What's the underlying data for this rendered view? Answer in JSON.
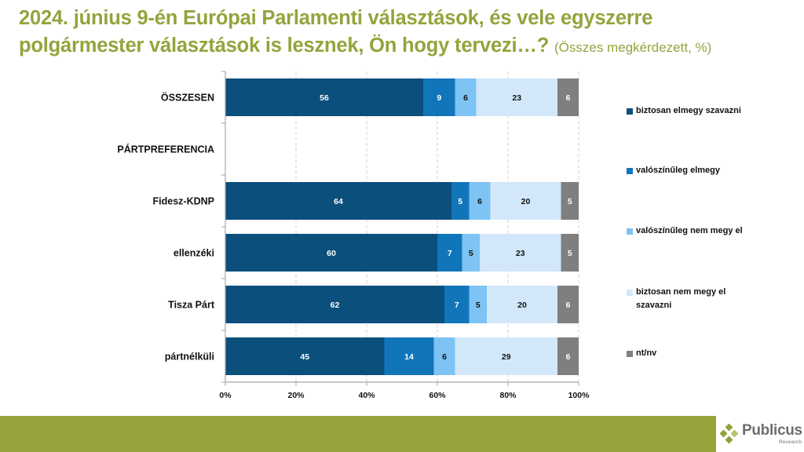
{
  "title": {
    "line1": "2024. június 9-én Európai Parlamenti választások, és vele egyszerre",
    "line2": "polgármester választások is lesznek, Ön hogy tervezi…?",
    "subtitle": "(Összes megkérdezett, %)"
  },
  "chart_data": {
    "type": "bar",
    "orientation": "horizontal",
    "stacked": true,
    "title": "2024. június 9-én Európai Parlamenti választások, és vele egyszerre polgármester választások is lesznek, Ön hogy tervezi…? (Összes megkérdezett, %)",
    "xlabel": "",
    "ylabel": "",
    "xlim": [
      0,
      100
    ],
    "x_ticks": [
      "0%",
      "20%",
      "40%",
      "60%",
      "80%",
      "100%"
    ],
    "x_tick_values": [
      0,
      20,
      40,
      60,
      80,
      100
    ],
    "grid": "vertical dashed",
    "legend_position": "right",
    "categories": [
      "ÖSSZESEN",
      "PÁRTPREFERENCIA",
      "Fidesz-KDNP",
      "ellenzéki",
      "Tisza Párt",
      "pártnélküli"
    ],
    "series": [
      {
        "name": "biztosan elmegy szavazni",
        "color": "#0b4f7c",
        "label_color": "#ffffff",
        "values": [
          56,
          null,
          64,
          60,
          62,
          45
        ]
      },
      {
        "name": "valószínűleg elmegy",
        "color": "#1175ba",
        "label_color": "#ffffff",
        "values": [
          9,
          null,
          5,
          7,
          7,
          14
        ]
      },
      {
        "name": "valószínűleg nem megy el",
        "color": "#7dc3f3",
        "label_color": "#111111",
        "values": [
          6,
          null,
          6,
          5,
          5,
          6
        ]
      },
      {
        "name": "biztosan nem megy el szavazni",
        "color": "#d2e8fa",
        "label_color": "#111111",
        "values": [
          23,
          null,
          20,
          23,
          20,
          29
        ]
      },
      {
        "name": "nt/nv",
        "color": "#7f7f7f",
        "label_color": "#ffffff",
        "values": [
          6,
          null,
          5,
          5,
          6,
          6
        ]
      }
    ]
  },
  "legend": {
    "items": [
      {
        "label": "biztosan elmegy szavazni",
        "color": "#0b4f7c"
      },
      {
        "label": "valószínűleg elmegy",
        "color": "#1175ba"
      },
      {
        "label": "valószínűleg nem megy el",
        "color": "#7dc3f3"
      },
      {
        "label": "biztosan nem megy el szavazni",
        "color": "#d2e8fa"
      },
      {
        "label": "nt/nv",
        "color": "#7f7f7f"
      }
    ]
  },
  "footer": {
    "brand": "Publicus",
    "brand_sub": "Research",
    "band_color": "#98a33e"
  }
}
